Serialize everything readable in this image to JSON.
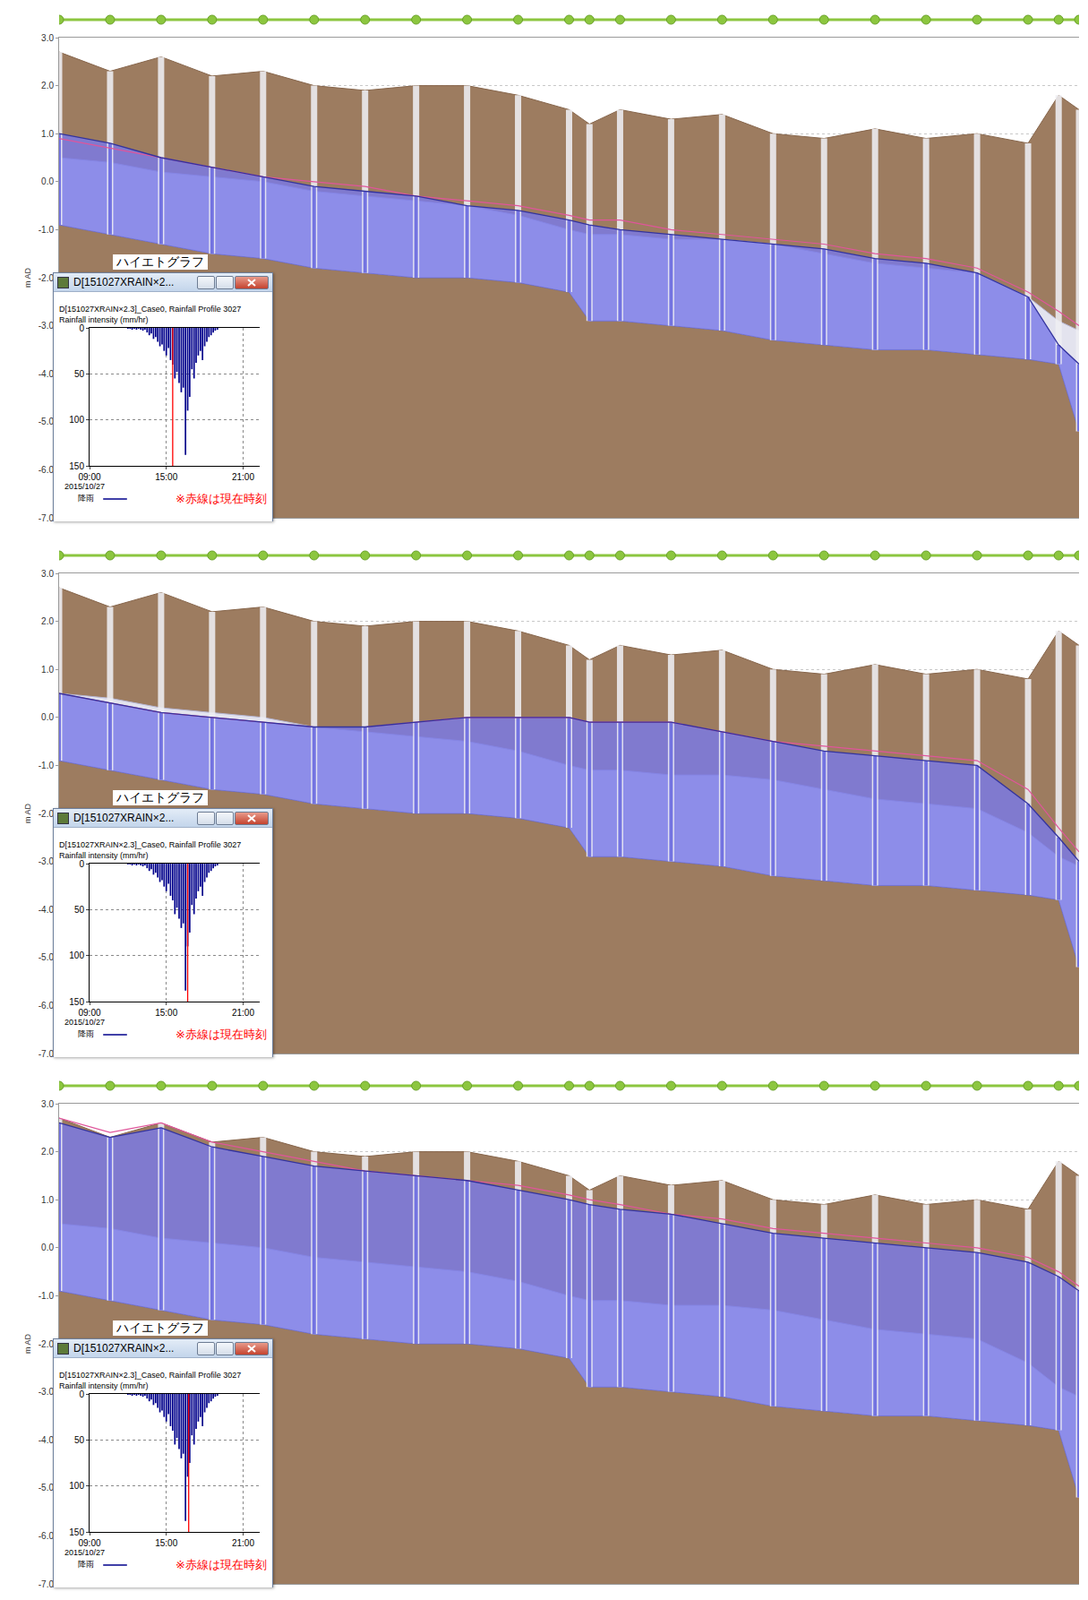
{
  "chart_data": [
    {
      "type": "profile",
      "ylabel": "m AD",
      "x": [
        0,
        50,
        100,
        150,
        200,
        250,
        300,
        350,
        400,
        450,
        500,
        520,
        550,
        600,
        650,
        700,
        750,
        800,
        850,
        900,
        950,
        980,
        1000
      ],
      "ground_level": [
        2.7,
        2.3,
        2.6,
        2.2,
        2.3,
        2.0,
        1.9,
        2.0,
        2.0,
        1.8,
        1.5,
        1.2,
        1.5,
        1.3,
        1.4,
        1.0,
        0.9,
        1.1,
        0.9,
        1.0,
        0.8,
        1.8,
        1.5
      ],
      "pipe_crown": [
        0.5,
        0.4,
        0.2,
        0.1,
        0.0,
        -0.2,
        -0.3,
        -0.4,
        -0.5,
        -0.7,
        -1.0,
        -1.1,
        -1.1,
        -1.2,
        -1.2,
        -1.3,
        -1.5,
        -1.7,
        -1.8,
        -1.9,
        -2.4,
        -2.9,
        -3.1
      ],
      "pipe_invert": [
        -0.9,
        -1.1,
        -1.3,
        -1.5,
        -1.6,
        -1.8,
        -1.9,
        -2.0,
        -2.0,
        -2.1,
        -2.3,
        -2.9,
        -2.9,
        -3.0,
        -3.1,
        -3.3,
        -3.4,
        -3.5,
        -3.5,
        -3.6,
        -3.7,
        -3.8,
        -5.2
      ],
      "water_level": [
        1.0,
        0.8,
        0.5,
        0.3,
        0.1,
        -0.1,
        -0.2,
        -0.3,
        -0.5,
        -0.6,
        -0.8,
        -0.9,
        -1.0,
        -1.1,
        -1.2,
        -1.3,
        -1.4,
        -1.6,
        -1.7,
        -1.9,
        -2.4,
        -3.4,
        -3.8
      ],
      "max_water_level": [
        0.9,
        0.7,
        0.5,
        0.3,
        0.1,
        0.0,
        -0.1,
        -0.3,
        -0.4,
        -0.5,
        -0.7,
        -0.8,
        -0.8,
        -1.0,
        -1.1,
        -1.2,
        -1.3,
        -1.5,
        -1.6,
        -1.8,
        -2.3,
        -2.7,
        -3.0
      ],
      "xlim": [
        0,
        1000
      ],
      "ylim": [
        -7,
        3
      ],
      "yticks": [
        {
          "value": 3,
          "label": "3.0"
        },
        {
          "value": 2,
          "label": "2.0"
        },
        {
          "value": 1,
          "label": "1.0"
        },
        {
          "value": 0,
          "label": "0.0"
        },
        {
          "value": -1,
          "label": "-1.0"
        },
        {
          "value": -2,
          "label": "-2.0"
        },
        {
          "value": -3,
          "label": "-3.0"
        },
        {
          "value": -4,
          "label": "-4.0"
        },
        {
          "value": -5,
          "label": "-5.0"
        },
        {
          "value": -6,
          "label": "-6.0"
        },
        {
          "value": -7,
          "label": "-7.0"
        }
      ],
      "grid": true,
      "tick_labels": "y"
    },
    {
      "type": "bar",
      "title": "ハイエトグラフ",
      "window_title": "D[151027XRAIN×2...",
      "subtitle": "D[151027XRAIN×2.3]_Case0, Rainfall Profile 3027",
      "ylabel": "Rainfall intensity (mm/hr)",
      "xlabel": "2015/10/27",
      "x": [
        12,
        12.17,
        12.33,
        12.5,
        12.67,
        12.83,
        13,
        13.17,
        13.33,
        13.5,
        13.67,
        13.83,
        14,
        14.17,
        14.33,
        14.5,
        14.67,
        14.83,
        15,
        15.17,
        15.33,
        15.5,
        15.67,
        15.83,
        16,
        16.17,
        16.33,
        16.5,
        16.67,
        16.83,
        17,
        17.17,
        17.33,
        17.5,
        17.67,
        17.83,
        18,
        18.17,
        18.33,
        18.5,
        18.67,
        18.83,
        19
      ],
      "series": [
        {
          "name": "降雨",
          "color": "#00008b",
          "values": [
            1,
            1,
            2,
            1,
            2,
            1,
            2,
            3,
            2,
            5,
            8,
            6,
            12,
            10,
            15,
            20,
            18,
            25,
            30,
            22,
            35,
            40,
            55,
            48,
            60,
            70,
            65,
            138,
            90,
            75,
            45,
            55,
            38,
            30,
            25,
            35,
            20,
            15,
            10,
            8,
            5,
            3,
            2
          ]
        }
      ],
      "xlim": [
        9,
        22.3
      ],
      "xticks": [
        {
          "value": 9,
          "label": "09:00"
        },
        {
          "value": 15,
          "label": "15:00"
        },
        {
          "value": 21,
          "label": "21:00"
        }
      ],
      "ylim": [
        150,
        0
      ],
      "yticks": [
        0,
        50,
        100,
        150
      ],
      "grid": true,
      "legend": "bottom left",
      "annotations": [
        {
          "text": "※赤線は現在時刻",
          "color": "#ff0000"
        }
      ],
      "current_time": 15.5
    },
    {
      "type": "profile",
      "ylabel": "m AD",
      "x": [
        0,
        50,
        100,
        150,
        200,
        250,
        300,
        350,
        400,
        450,
        500,
        520,
        550,
        600,
        650,
        700,
        750,
        800,
        850,
        900,
        950,
        980,
        1000
      ],
      "ground_level": [
        2.7,
        2.3,
        2.6,
        2.2,
        2.3,
        2.0,
        1.9,
        2.0,
        2.0,
        1.8,
        1.5,
        1.2,
        1.5,
        1.3,
        1.4,
        1.0,
        0.9,
        1.1,
        0.9,
        1.0,
        0.8,
        1.8,
        1.5
      ],
      "pipe_crown": [
        0.5,
        0.4,
        0.2,
        0.1,
        0.0,
        -0.2,
        -0.3,
        -0.4,
        -0.5,
        -0.7,
        -1.0,
        -1.1,
        -1.1,
        -1.2,
        -1.2,
        -1.3,
        -1.5,
        -1.7,
        -1.8,
        -1.9,
        -2.4,
        -2.9,
        -3.1
      ],
      "pipe_invert": [
        -0.9,
        -1.1,
        -1.3,
        -1.5,
        -1.6,
        -1.8,
        -1.9,
        -2.0,
        -2.0,
        -2.1,
        -2.3,
        -2.9,
        -2.9,
        -3.0,
        -3.1,
        -3.3,
        -3.4,
        -3.5,
        -3.5,
        -3.6,
        -3.7,
        -3.8,
        -5.2
      ],
      "water_level": [
        0.5,
        0.3,
        0.1,
        0.0,
        -0.1,
        -0.2,
        -0.2,
        -0.1,
        0.0,
        0.0,
        0.0,
        -0.1,
        -0.1,
        -0.1,
        -0.3,
        -0.5,
        -0.7,
        -0.8,
        -0.9,
        -1.0,
        -1.8,
        -2.5,
        -3.0
      ],
      "max_water_level": [
        0.5,
        0.3,
        0.1,
        0.0,
        -0.1,
        -0.2,
        -0.2,
        -0.1,
        0.0,
        0.0,
        0.0,
        -0.1,
        -0.1,
        -0.1,
        -0.3,
        -0.5,
        -0.6,
        -0.7,
        -0.8,
        -0.9,
        -1.5,
        -2.3,
        -2.8
      ],
      "xlim": [
        0,
        1000
      ],
      "ylim": [
        -7,
        3
      ],
      "yticks": [
        {
          "value": 3,
          "label": "3.0"
        },
        {
          "value": 2,
          "label": "2.0"
        },
        {
          "value": 1,
          "label": "1.0"
        },
        {
          "value": 0,
          "label": "0.0"
        },
        {
          "value": -1,
          "label": "-1.0"
        },
        {
          "value": -2,
          "label": "-2.0"
        },
        {
          "value": -3,
          "label": "-3.0"
        },
        {
          "value": -4,
          "label": "-4.0"
        },
        {
          "value": -5,
          "label": "-5.0"
        },
        {
          "value": -6,
          "label": "-6.0"
        },
        {
          "value": -7,
          "label": "-7.0"
        }
      ],
      "grid": true,
      "tick_labels": "y"
    },
    {
      "type": "bar",
      "title": "ハイエトグラフ",
      "window_title": "D[151027XRAIN×2...",
      "subtitle": "D[151027XRAIN×2.3]_Case0, Rainfall Profile 3027",
      "ylabel": "Rainfall intensity (mm/hr)",
      "xlabel": "2015/10/27",
      "x": [
        12,
        12.17,
        12.33,
        12.5,
        12.67,
        12.83,
        13,
        13.17,
        13.33,
        13.5,
        13.67,
        13.83,
        14,
        14.17,
        14.33,
        14.5,
        14.67,
        14.83,
        15,
        15.17,
        15.33,
        15.5,
        15.67,
        15.83,
        16,
        16.17,
        16.33,
        16.5,
        16.67,
        16.83,
        17,
        17.17,
        17.33,
        17.5,
        17.67,
        17.83,
        18,
        18.17,
        18.33,
        18.5,
        18.67,
        18.83,
        19
      ],
      "series": [
        {
          "name": "降雨",
          "color": "#00008b",
          "values": [
            1,
            1,
            2,
            1,
            2,
            1,
            2,
            3,
            2,
            5,
            8,
            6,
            12,
            10,
            15,
            20,
            18,
            25,
            30,
            22,
            35,
            40,
            55,
            48,
            60,
            70,
            65,
            138,
            90,
            75,
            45,
            55,
            38,
            30,
            25,
            35,
            20,
            15,
            10,
            8,
            5,
            3,
            2
          ]
        }
      ],
      "xlim": [
        9,
        22.3
      ],
      "xticks": [
        {
          "value": 9,
          "label": "09:00"
        },
        {
          "value": 15,
          "label": "15:00"
        },
        {
          "value": 21,
          "label": "21:00"
        }
      ],
      "ylim": [
        150,
        0
      ],
      "yticks": [
        0,
        50,
        100,
        150
      ],
      "grid": true,
      "legend": "bottom left",
      "annotations": [
        {
          "text": "※赤線は現在時刻",
          "color": "#ff0000"
        }
      ],
      "current_time": 16.67
    },
    {
      "type": "profile",
      "ylabel": "m AD",
      "x": [
        0,
        50,
        100,
        150,
        200,
        250,
        300,
        350,
        400,
        450,
        500,
        520,
        550,
        600,
        650,
        700,
        750,
        800,
        850,
        900,
        950,
        980,
        1000
      ],
      "ground_level": [
        2.7,
        2.3,
        2.6,
        2.2,
        2.3,
        2.0,
        1.9,
        2.0,
        2.0,
        1.8,
        1.5,
        1.2,
        1.5,
        1.3,
        1.4,
        1.0,
        0.9,
        1.1,
        0.9,
        1.0,
        0.8,
        1.8,
        1.5
      ],
      "pipe_crown": [
        0.5,
        0.4,
        0.2,
        0.1,
        0.0,
        -0.2,
        -0.3,
        -0.4,
        -0.5,
        -0.7,
        -1.0,
        -1.1,
        -1.1,
        -1.2,
        -1.2,
        -1.3,
        -1.5,
        -1.7,
        -1.8,
        -1.9,
        -2.4,
        -2.9,
        -3.1
      ],
      "pipe_invert": [
        -0.9,
        -1.1,
        -1.3,
        -1.5,
        -1.6,
        -1.8,
        -1.9,
        -2.0,
        -2.0,
        -2.1,
        -2.3,
        -2.9,
        -2.9,
        -3.0,
        -3.1,
        -3.3,
        -3.4,
        -3.5,
        -3.5,
        -3.6,
        -3.7,
        -3.8,
        -5.2
      ],
      "water_level": [
        2.6,
        2.3,
        2.5,
        2.1,
        1.9,
        1.7,
        1.6,
        1.5,
        1.4,
        1.2,
        1.0,
        0.9,
        0.8,
        0.7,
        0.5,
        0.3,
        0.2,
        0.1,
        0.0,
        -0.1,
        -0.3,
        -0.6,
        -0.9
      ],
      "max_water_level": [
        2.7,
        2.4,
        2.6,
        2.2,
        2.0,
        1.8,
        1.6,
        1.5,
        1.4,
        1.3,
        1.1,
        1.0,
        0.9,
        0.7,
        0.6,
        0.4,
        0.3,
        0.2,
        0.1,
        0.0,
        -0.2,
        -0.5,
        -0.8
      ],
      "xlim": [
        0,
        1000
      ],
      "ylim": [
        -7,
        3
      ],
      "yticks": [
        {
          "value": 3,
          "label": "3.0"
        },
        {
          "value": 2,
          "label": "2.0"
        },
        {
          "value": 1,
          "label": "1.0"
        },
        {
          "value": 0,
          "label": "0.0"
        },
        {
          "value": -1,
          "label": "-1.0"
        },
        {
          "value": -2,
          "label": "-2.0"
        },
        {
          "value": -3,
          "label": "-3.0"
        },
        {
          "value": -4,
          "label": "-4.0"
        },
        {
          "value": -5,
          "label": "-5.0"
        },
        {
          "value": -6,
          "label": "-6.0"
        },
        {
          "value": -7,
          "label": "-7.0"
        }
      ],
      "grid": true,
      "tick_labels": "y"
    },
    {
      "type": "bar",
      "title": "ハイエトグラフ",
      "window_title": "D[151027XRAIN×2...",
      "subtitle": "D[151027XRAIN×2.3]_Case0, Rainfall Profile 3027",
      "ylabel": "Rainfall intensity (mm/hr)",
      "xlabel": "2015/10/27",
      "x": [
        12,
        12.17,
        12.33,
        12.5,
        12.67,
        12.83,
        13,
        13.17,
        13.33,
        13.5,
        13.67,
        13.83,
        14,
        14.17,
        14.33,
        14.5,
        14.67,
        14.83,
        15,
        15.17,
        15.33,
        15.5,
        15.67,
        15.83,
        16,
        16.17,
        16.33,
        16.5,
        16.67,
        16.83,
        17,
        17.17,
        17.33,
        17.5,
        17.67,
        17.83,
        18,
        18.17,
        18.33,
        18.5,
        18.67,
        18.83,
        19
      ],
      "series": [
        {
          "name": "降雨",
          "color": "#00008b",
          "values": [
            1,
            1,
            2,
            1,
            2,
            1,
            2,
            3,
            2,
            5,
            8,
            6,
            12,
            10,
            15,
            20,
            18,
            25,
            30,
            22,
            35,
            40,
            55,
            48,
            60,
            70,
            65,
            138,
            90,
            75,
            45,
            55,
            38,
            30,
            25,
            35,
            20,
            15,
            10,
            8,
            5,
            3,
            2
          ]
        }
      ],
      "xlim": [
        9,
        22.3
      ],
      "xticks": [
        {
          "value": 9,
          "label": "09:00"
        },
        {
          "value": 15,
          "label": "15:00"
        },
        {
          "value": 21,
          "label": "21:00"
        }
      ],
      "ylim": [
        150,
        0
      ],
      "yticks": [
        0,
        50,
        100,
        150
      ],
      "grid": true,
      "legend": "bottom left",
      "annotations": [
        {
          "text": "※赤線は現在時刻",
          "color": "#ff0000"
        }
      ],
      "current_time": 16.75
    }
  ]
}
